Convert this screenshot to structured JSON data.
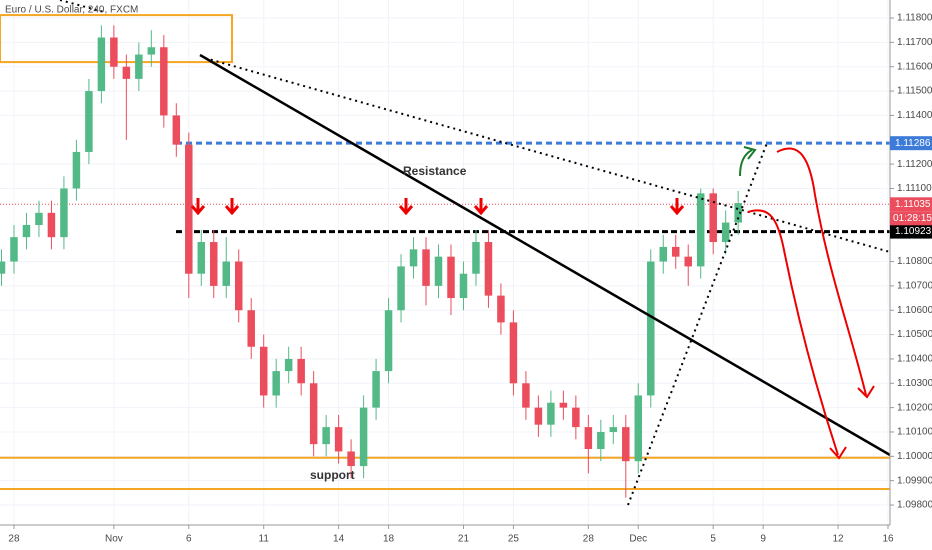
{
  "chart_data": {
    "type": "candlestick",
    "title": "Euro / U.S. Dollar, 240, FXCM",
    "up_color": "#53b987",
    "down_color": "#eb4d5c",
    "grid": true,
    "xlim": [
      -0.56,
      35.08
    ],
    "ylim": [
      1.09718,
      1.11874
    ],
    "xticks": [
      {
        "value": 0,
        "label": "28"
      },
      {
        "value": 4,
        "label": "Nov"
      },
      {
        "value": 7,
        "label": "6"
      },
      {
        "value": 10,
        "label": "11"
      },
      {
        "value": 13,
        "label": "14"
      },
      {
        "value": 15,
        "label": "18"
      },
      {
        "value": 18,
        "label": "21"
      },
      {
        "value": 20,
        "label": "25"
      },
      {
        "value": 23,
        "label": "28"
      },
      {
        "value": 25,
        "label": "Dec"
      },
      {
        "value": 28,
        "label": "5"
      },
      {
        "value": 30,
        "label": "9"
      },
      {
        "value": 33,
        "label": "12"
      },
      {
        "value": 35,
        "label": "16"
      }
    ],
    "yticks": [
      {
        "value": 1.098,
        "label": "1.09800"
      },
      {
        "value": 1.099,
        "label": "1.09900"
      },
      {
        "value": 1.1,
        "label": "1.10000"
      },
      {
        "value": 1.101,
        "label": "1.10100"
      },
      {
        "value": 1.102,
        "label": "1.10200"
      },
      {
        "value": 1.103,
        "label": "1.10300"
      },
      {
        "value": 1.104,
        "label": "1.10400"
      },
      {
        "value": 1.105,
        "label": "1.10500"
      },
      {
        "value": 1.106,
        "label": "1.10600"
      },
      {
        "value": 1.107,
        "label": "1.10700"
      },
      {
        "value": 1.108,
        "label": "1.10800"
      },
      {
        "value": 1.111,
        "label": "1.11100"
      },
      {
        "value": 1.112,
        "label": "1.11200"
      },
      {
        "value": 1.114,
        "label": "1.11400"
      },
      {
        "value": 1.115,
        "label": "1.11500"
      },
      {
        "value": 1.116,
        "label": "1.11600"
      },
      {
        "value": 1.117,
        "label": "1.11700"
      },
      {
        "value": 1.118,
        "label": "1.11800"
      }
    ],
    "x": [
      -0.5,
      0,
      0.5,
      1,
      1.5,
      2,
      2.5,
      3,
      3.5,
      4,
      4.5,
      5,
      5.5,
      6,
      6.5,
      7,
      7.5,
      8,
      8.5,
      9,
      9.5,
      10,
      10.5,
      11,
      11.5,
      12,
      12.5,
      13,
      13.5,
      14,
      14.5,
      15,
      15.5,
      16,
      16.5,
      17,
      17.5,
      18,
      18.5,
      19,
      19.5,
      20,
      20.5,
      21,
      21.5,
      22,
      22.5,
      23,
      23.5,
      24,
      24.5,
      25,
      25.5,
      26,
      26.5,
      27,
      27.5,
      28,
      28.5,
      29
    ],
    "open": [
      1.1075,
      1.108,
      1.109,
      1.1095,
      1.11,
      1.109,
      1.111,
      1.1125,
      1.115,
      1.1172,
      1.116,
      1.1155,
      1.1165,
      1.1168,
      1.114,
      1.1128,
      1.1075,
      1.1088,
      1.107,
      1.108,
      1.106,
      1.1045,
      1.1025,
      1.1035,
      1.104,
      1.103,
      1.1005,
      1.1012,
      1.1002,
      1.0996,
      1.102,
      1.1035,
      1.106,
      1.1078,
      1.1085,
      1.107,
      1.1082,
      1.1065,
      1.1075,
      1.1088,
      1.1066,
      1.1055,
      1.103,
      1.102,
      1.1013,
      1.1022,
      1.102,
      1.1012,
      1.1003,
      1.101,
      1.1012,
      1.0998,
      1.1025,
      1.108,
      1.1086,
      1.1082,
      1.1078,
      1.1108,
      1.1088,
      1.1096
    ],
    "high": [
      1.1085,
      1.1095,
      1.11,
      1.1105,
      1.1105,
      1.1115,
      1.113,
      1.1155,
      1.1177,
      1.1177,
      1.1165,
      1.117,
      1.1175,
      1.1173,
      1.1145,
      1.1133,
      1.1093,
      1.1093,
      1.109,
      1.1085,
      1.1065,
      1.105,
      1.104,
      1.1045,
      1.1045,
      1.1035,
      1.1017,
      1.1017,
      1.1007,
      1.1025,
      1.104,
      1.1065,
      1.1083,
      1.109,
      1.109,
      1.1087,
      1.1087,
      1.108,
      1.1093,
      1.1093,
      1.1071,
      1.106,
      1.1035,
      1.1025,
      1.1027,
      1.1027,
      1.1025,
      1.1017,
      1.1015,
      1.1017,
      1.1017,
      1.103,
      1.1085,
      1.1091,
      1.1091,
      1.1087,
      1.111,
      1.111,
      1.1101,
      1.1109
    ],
    "low": [
      1.107,
      1.1075,
      1.1085,
      1.109,
      1.1085,
      1.1085,
      1.1105,
      1.112,
      1.1145,
      1.1155,
      1.113,
      1.115,
      1.116,
      1.1135,
      1.1123,
      1.1065,
      1.107,
      1.1065,
      1.1065,
      1.1055,
      1.104,
      1.102,
      1.102,
      1.103,
      1.1025,
      1.1,
      1.1,
      1.0997,
      1.0991,
      1.0991,
      1.1015,
      1.103,
      1.1055,
      1.1073,
      1.1062,
      1.1065,
      1.1058,
      1.106,
      1.107,
      1.1061,
      1.105,
      1.1025,
      1.1015,
      1.1008,
      1.1008,
      1.1015,
      1.1007,
      1.0993,
      1.0998,
      1.1005,
      1.0983,
      1.0993,
      1.102,
      1.1075,
      1.1077,
      1.107,
      1.1073,
      1.1083,
      1.1083,
      1.1091
    ],
    "close": [
      1.108,
      1.109,
      1.1095,
      1.11,
      1.109,
      1.111,
      1.1125,
      1.115,
      1.1172,
      1.116,
      1.1155,
      1.1165,
      1.1168,
      1.114,
      1.1128,
      1.1075,
      1.1088,
      1.107,
      1.108,
      1.106,
      1.1045,
      1.1025,
      1.1035,
      1.104,
      1.103,
      1.1005,
      1.1012,
      1.1002,
      1.0996,
      1.102,
      1.1035,
      1.106,
      1.1078,
      1.1085,
      1.107,
      1.1082,
      1.1065,
      1.1075,
      1.1088,
      1.1066,
      1.1055,
      1.103,
      1.102,
      1.1013,
      1.1022,
      1.102,
      1.1012,
      1.1003,
      1.101,
      1.1012,
      1.0998,
      1.1025,
      1.108,
      1.1086,
      1.1082,
      1.1078,
      1.1108,
      1.1088,
      1.1096,
      1.1104
    ],
    "levels": [
      {
        "value": 1.11286,
        "color": "#3d7bd9",
        "dash": "6 4"
      },
      {
        "value": 1.10923,
        "color": "#000000",
        "dash": "6 3"
      },
      {
        "value": 1.11035,
        "color": "#eb4d5c",
        "dash": "1 2"
      }
    ],
    "countdown": "01:28:15",
    "zones": [
      {
        "value": 1.09994,
        "color": "#f5a623"
      },
      {
        "value": 1.09866,
        "color": "#f5a623"
      }
    ],
    "box": {
      "x": [
        -0.56,
        8.73
      ],
      "y": [
        1.11619,
        1.11812
      ],
      "color": "#f5a623"
    },
    "annotations": [
      "Resistance",
      "support"
    ]
  }
}
